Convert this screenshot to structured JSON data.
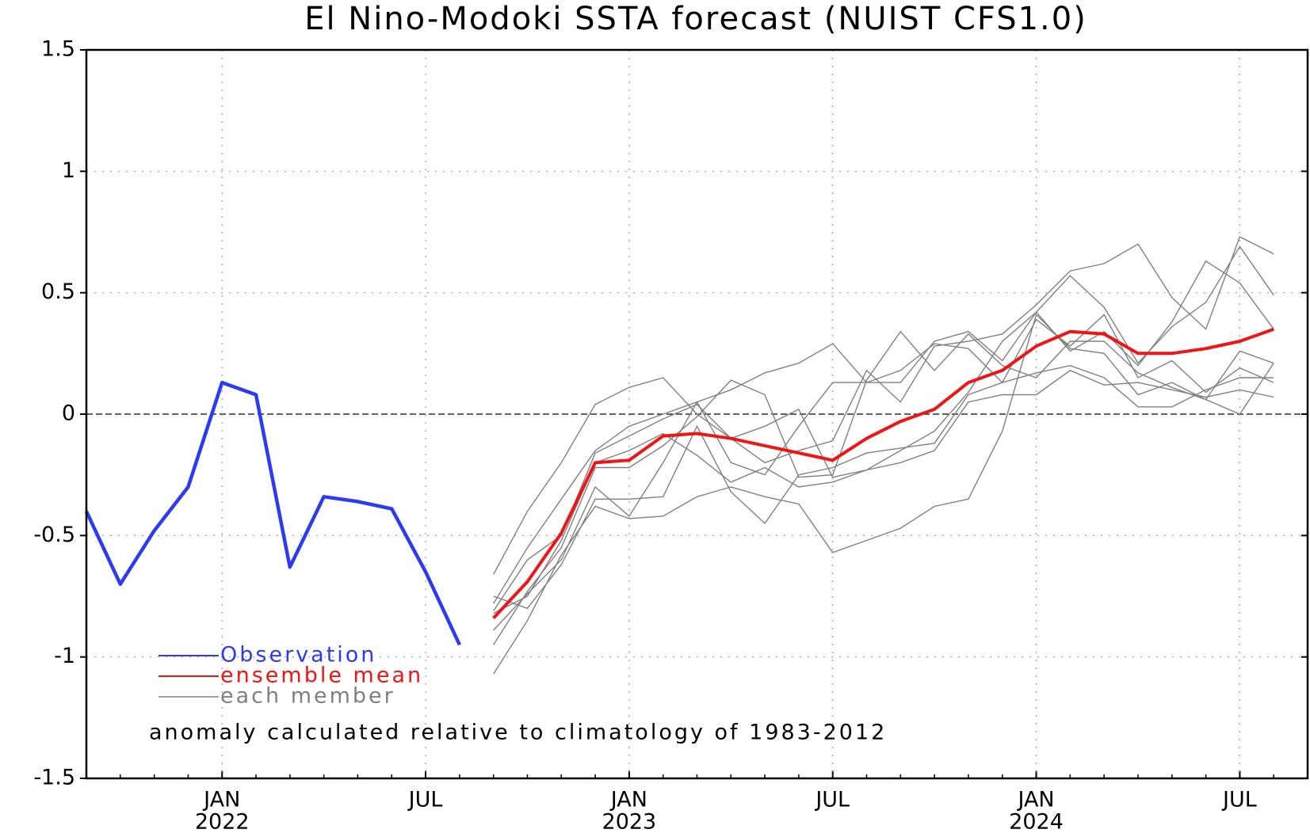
{
  "chart_data": {
    "type": "line",
    "title": "El Nino-Modoki SSTA forecast (NUIST CFS1.0)",
    "annotation": "anomaly calculated relative to climatology of 1983-2012",
    "xlim": [
      "2021-09",
      "2024-09"
    ],
    "xticks": [
      {
        "value": "2022-01",
        "label": "JAN",
        "year": "2022"
      },
      {
        "value": "2022-07",
        "label": "JUL"
      },
      {
        "value": "2023-01",
        "label": "JAN",
        "year": "2023"
      },
      {
        "value": "2023-07",
        "label": "JUL"
      },
      {
        "value": "2024-01",
        "label": "JAN",
        "year": "2024"
      },
      {
        "value": "2024-07",
        "label": "JUL"
      }
    ],
    "ylim": [
      -1.5,
      1.5
    ],
    "yticks": [
      -1.5,
      -1,
      -0.5,
      0,
      0.5,
      1,
      1.5
    ],
    "grid": true,
    "series": [
      {
        "name": "Observation",
        "color": "#2b3bf5",
        "x": [
          "2021-09",
          "2021-10",
          "2021-11",
          "2021-12",
          "2022-01",
          "2022-02",
          "2022-03",
          "2022-04",
          "2022-05",
          "2022-06",
          "2022-07",
          "2022-08"
        ],
        "values": [
          -0.4,
          -0.7,
          -0.48,
          -0.3,
          0.13,
          0.08,
          -0.63,
          -0.34,
          -0.36,
          -0.39,
          -0.65,
          -0.95
        ]
      },
      {
        "name": "ensemble mean",
        "color": "#f01414",
        "x": [
          "2022-09",
          "2022-10",
          "2022-11",
          "2022-12",
          "2023-01",
          "2023-02",
          "2023-03",
          "2023-04",
          "2023-05",
          "2023-06",
          "2023-07",
          "2023-08",
          "2023-09",
          "2023-10",
          "2023-11",
          "2023-12",
          "2024-01",
          "2024-02",
          "2024-03",
          "2024-04",
          "2024-05",
          "2024-06",
          "2024-07",
          "2024-08"
        ],
        "values": [
          -0.84,
          -0.69,
          -0.49,
          -0.2,
          -0.19,
          -0.09,
          -0.08,
          -0.1,
          -0.13,
          -0.16,
          -0.19,
          -0.1,
          -0.03,
          0.02,
          0.13,
          0.18,
          0.28,
          0.34,
          0.33,
          0.25,
          0.25,
          0.27,
          0.3,
          0.35
        ]
      },
      {
        "name": "each member",
        "color": "#808080",
        "x": [
          "2022-09",
          "2022-10",
          "2022-11",
          "2022-12",
          "2023-01",
          "2023-02",
          "2023-03",
          "2023-04",
          "2023-05",
          "2023-06",
          "2023-07",
          "2023-08",
          "2023-09",
          "2023-10",
          "2023-11",
          "2023-12",
          "2024-01",
          "2024-02",
          "2024-03",
          "2024-04",
          "2024-05",
          "2024-06",
          "2024-07",
          "2024-08"
        ],
        "members": [
          [
            -0.66,
            -0.4,
            -0.2,
            0.04,
            0.11,
            0.15,
            0.0,
            -0.1,
            -0.2,
            -0.15,
            -0.11,
            0.18,
            0.05,
            0.28,
            0.3,
            0.33,
            0.45,
            0.59,
            0.62,
            0.7,
            0.48,
            0.35,
            0.73,
            0.66
          ],
          [
            -0.78,
            -0.55,
            -0.35,
            -0.15,
            -0.05,
            0.0,
            0.05,
            0.1,
            0.17,
            0.21,
            0.29,
            0.13,
            0.13,
            0.3,
            0.34,
            0.22,
            0.42,
            0.57,
            0.44,
            0.21,
            0.36,
            0.46,
            0.69,
            0.49
          ],
          [
            -0.81,
            -0.6,
            -0.5,
            -0.16,
            -0.09,
            -0.02,
            0.04,
            -0.1,
            -0.05,
            0.02,
            -0.26,
            -0.23,
            -0.15,
            -0.07,
            0.09,
            0.3,
            0.42,
            0.26,
            0.34,
            0.2,
            0.38,
            0.63,
            0.54,
            0.35
          ],
          [
            -0.95,
            -0.73,
            -0.55,
            -0.22,
            -0.22,
            -0.13,
            -0.01,
            0.14,
            0.08,
            -0.26,
            -0.25,
            0.14,
            0.34,
            0.18,
            0.33,
            0.2,
            0.15,
            0.3,
            0.3,
            0.17,
            0.11,
            0.06,
            0.26,
            0.21
          ],
          [
            -0.89,
            -0.74,
            -0.6,
            -0.3,
            -0.42,
            -0.2,
            0.05,
            -0.2,
            -0.25,
            -0.05,
            0.13,
            0.13,
            0.18,
            0.29,
            0.27,
            0.13,
            0.39,
            0.28,
            0.41,
            0.15,
            0.22,
            0.09,
            0.19,
            0.13
          ],
          [
            -0.75,
            -0.8,
            -0.62,
            -0.35,
            -0.35,
            -0.34,
            -0.05,
            -0.32,
            -0.45,
            -0.25,
            -0.22,
            -0.16,
            -0.14,
            -0.12,
            0.08,
            0.13,
            0.17,
            0.2,
            0.15,
            0.03,
            0.03,
            0.1,
            0.15,
            0.15
          ],
          [
            -1.07,
            -0.85,
            -0.58,
            -0.38,
            -0.43,
            -0.42,
            -0.34,
            -0.3,
            -0.34,
            -0.37,
            -0.57,
            -0.52,
            -0.47,
            -0.38,
            -0.35,
            -0.07,
            0.41,
            0.27,
            0.25,
            0.08,
            0.13,
            0.06,
            0.0,
            0.21
          ],
          [
            -0.82,
            -0.75,
            -0.52,
            -0.2,
            -0.15,
            -0.08,
            -0.17,
            -0.28,
            -0.22,
            -0.3,
            -0.28,
            -0.23,
            -0.2,
            -0.15,
            0.05,
            0.08,
            0.08,
            0.18,
            0.12,
            0.13,
            0.1,
            0.07,
            0.1,
            0.07
          ]
        ]
      }
    ]
  }
}
